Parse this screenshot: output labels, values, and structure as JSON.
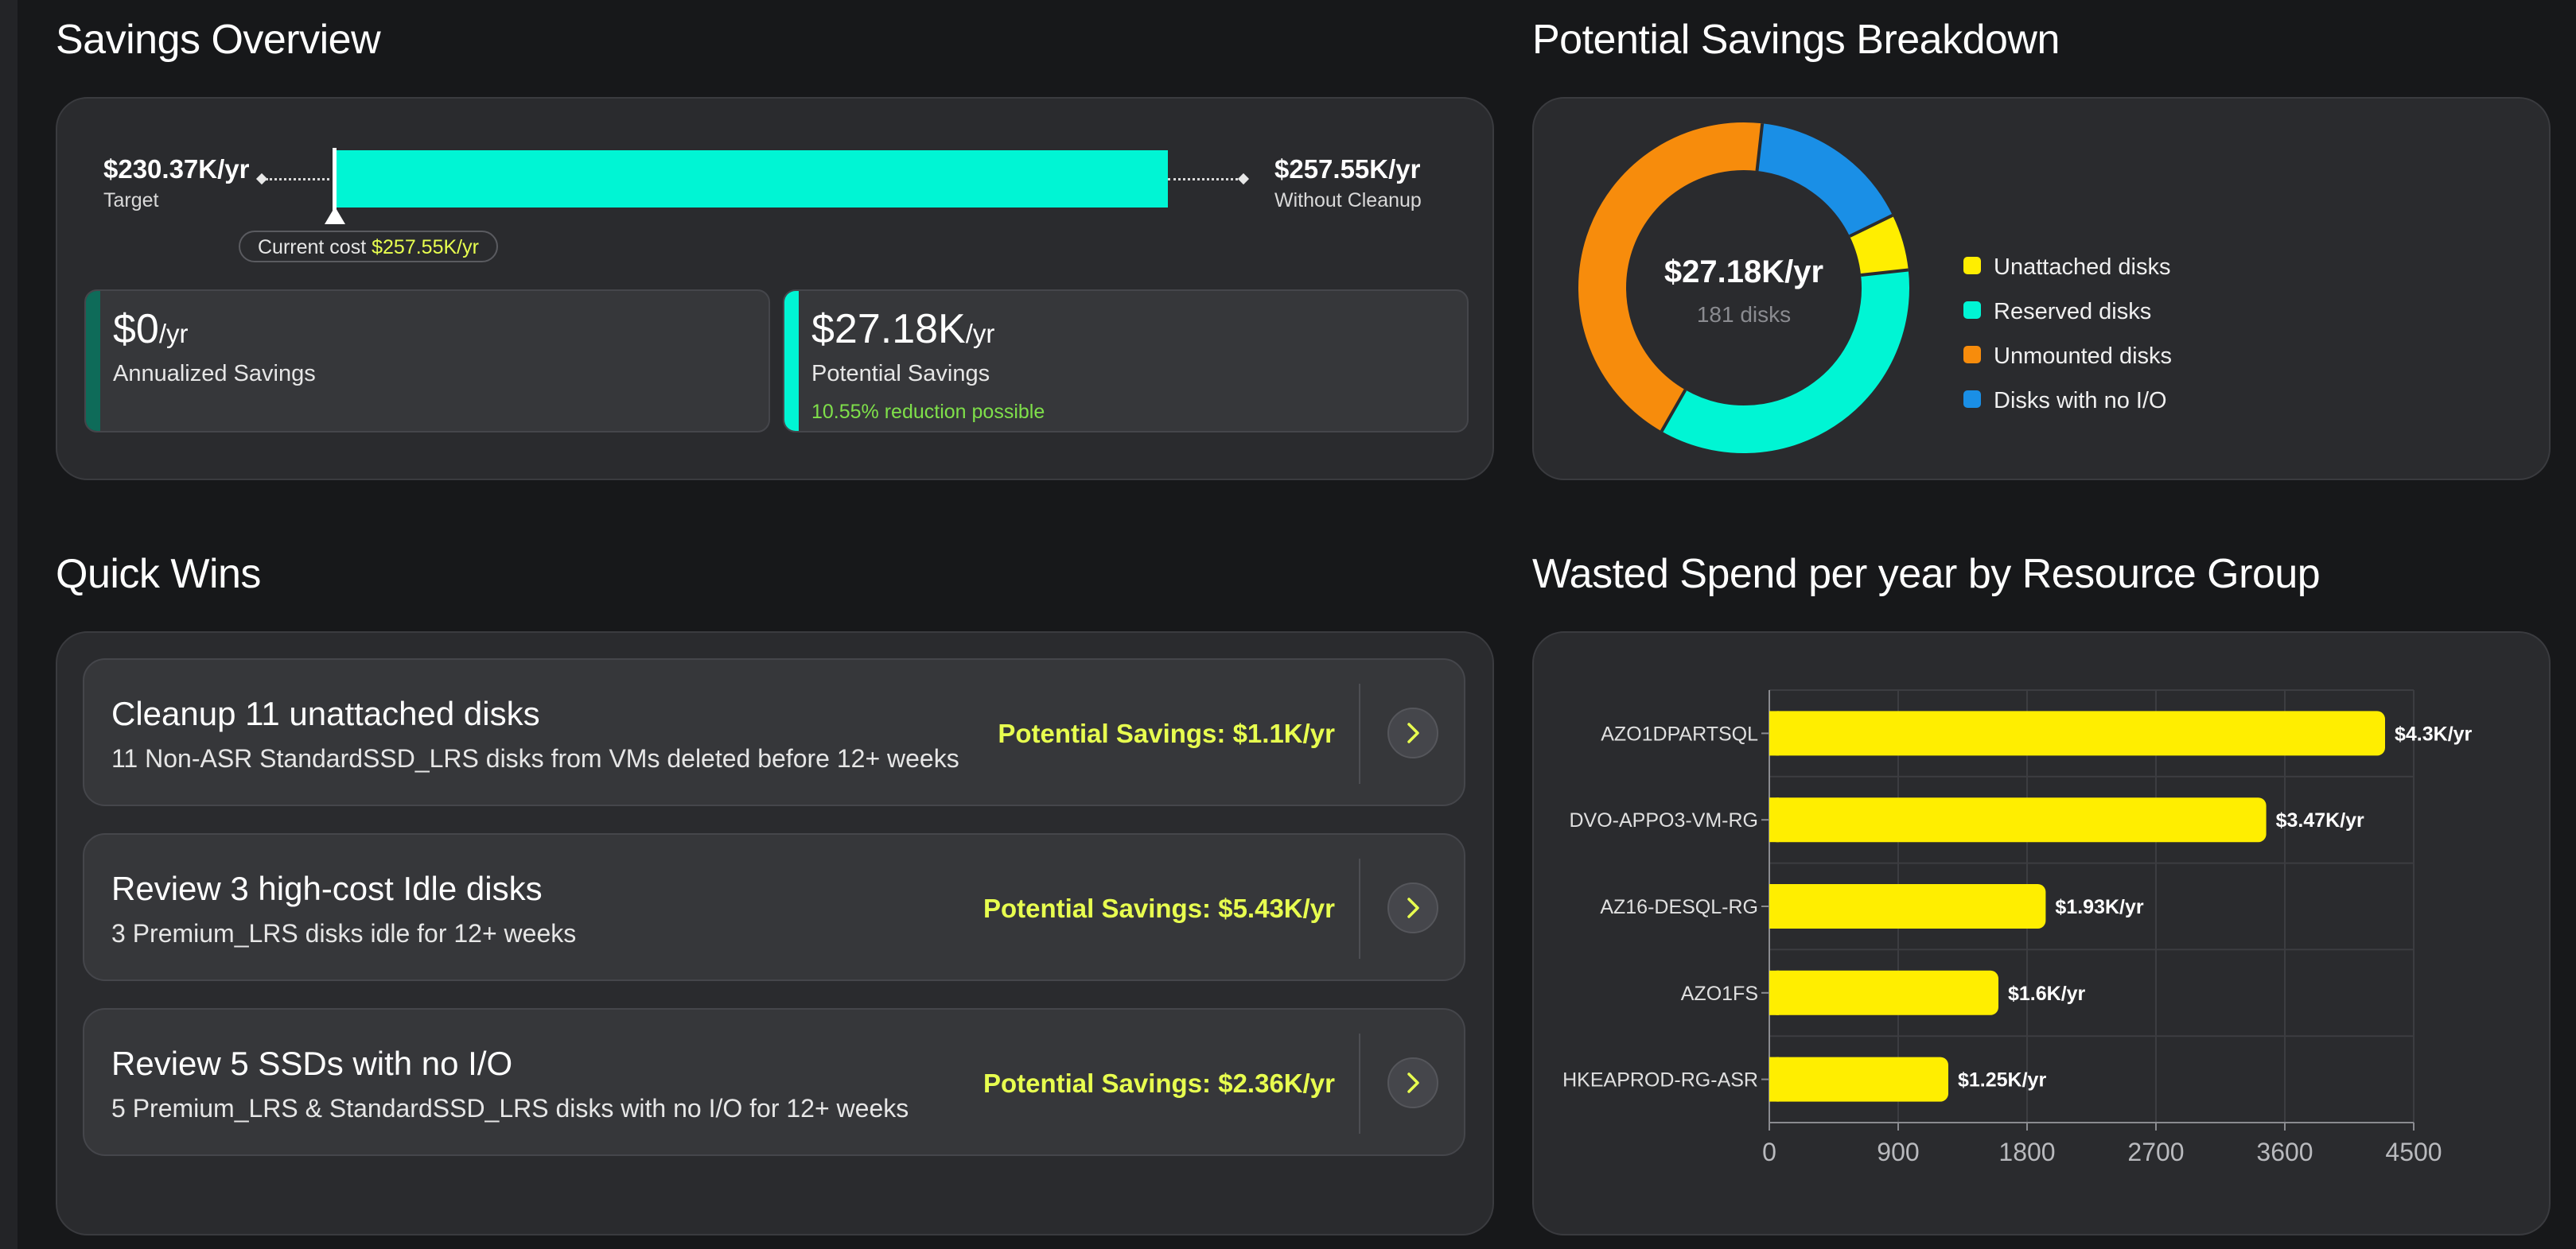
{
  "savings_overview": {
    "title": "Savings Overview",
    "target_value": "$230.37K/yr",
    "target_label": "Target",
    "without_cleanup_value": "$257.55K/yr",
    "without_cleanup_label": "Without Cleanup",
    "current_cost_label": "Current cost",
    "current_cost_value": "$257.55K/yr",
    "annualized": {
      "value": "$0",
      "unit": "/yr",
      "label": "Annualized Savings",
      "accent": "#0e6b59"
    },
    "potential": {
      "value": "$27.18K",
      "unit": "/yr",
      "label": "Potential Savings",
      "note": "10.55% reduction possible",
      "accent": "#00f5d4"
    }
  },
  "breakdown": {
    "title": "Potential Savings Breakdown",
    "center_value": "$27.18K/yr",
    "center_sub": "181 disks",
    "segments": [
      {
        "name": "Unattached disks",
        "color": "#ffee00",
        "value": 0.055
      },
      {
        "name": "Reserved disks",
        "color": "#00f5d4",
        "value": 0.35
      },
      {
        "name": "Unmounted disks",
        "color": "#f78c0c",
        "value": 0.435
      },
      {
        "name": "Disks with no I/O",
        "color": "#1a8fe6",
        "value": 0.16
      }
    ]
  },
  "quick_wins": {
    "title": "Quick Wins",
    "items": [
      {
        "title": "Cleanup 11 unattached disks",
        "desc": "11 Non-ASR StandardSSD_LRS disks from VMs deleted before 12+ weeks",
        "savings": "Potential Savings: $1.1K/yr"
      },
      {
        "title": "Review 3 high-cost Idle disks",
        "desc": "3 Premium_LRS disks idle for 12+ weeks",
        "savings": "Potential Savings: $5.43K/yr"
      },
      {
        "title": "Review 5 SSDs with no I/O",
        "desc": "5 Premium_LRS & StandardSSD_LRS disks with no I/O for 12+ weeks",
        "savings": "Potential Savings: $2.36K/yr"
      }
    ]
  },
  "wasted_spend": {
    "title": "Wasted Spend per year by Resource Group"
  },
  "chart_data": {
    "type": "bar",
    "orientation": "horizontal",
    "title": "Wasted Spend per year by Resource Group",
    "categories": [
      "AZO1DPARTSQL",
      "DVO-APPO3-VM-RG",
      "AZ16-DESQL-RG",
      "AZO1FS",
      "HKEAPROD-RG-ASR"
    ],
    "values": [
      4300,
      3470,
      1930,
      1600,
      1250
    ],
    "data_labels": [
      "$4.3K/yr",
      "$3.47K/yr",
      "$1.93K/yr",
      "$1.6K/yr",
      "$1.25K/yr"
    ],
    "xticks": [
      0,
      900,
      1800,
      2700,
      3600,
      4500
    ],
    "xlim": [
      0,
      4500
    ],
    "grid": true,
    "bar_color": "#ffee00"
  }
}
